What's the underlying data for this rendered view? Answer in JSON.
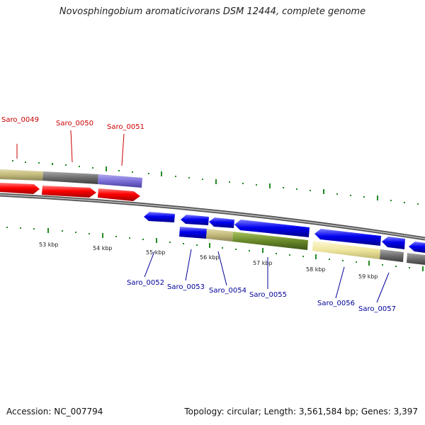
{
  "title": "Novosphingobium aromaticivorans DSM 12444, complete genome",
  "accession": "Accession: NC_007794",
  "summary": "Topology: circular; Length: 3,561,584 bp; Genes: 3,397",
  "colors": {
    "forward_label": "#cc0000",
    "reverse_label": "#000099",
    "red_gene": "#ff0000",
    "blue_gene": "#0000ee",
    "tan_gene": "#c2b97a",
    "grey_gene": "#6e6e6e",
    "purple_gene": "#7b6fd8",
    "olive_gene": "#6a8a2a",
    "pale_gene": "#efe69e",
    "tick": "#228b22"
  },
  "kbp_labels": [
    "53 kbp",
    "54 kbp",
    "55 kbp",
    "56 kbp",
    "57 kbp",
    "58 kbp",
    "59 kbp"
  ],
  "forward_genes": [
    "Saro_0049",
    "Saro_0050",
    "Saro_0051"
  ],
  "reverse_genes": [
    "Saro_0052",
    "Saro_0053",
    "Saro_0054",
    "Saro_0055",
    "Saro_0056",
    "Saro_0057"
  ]
}
